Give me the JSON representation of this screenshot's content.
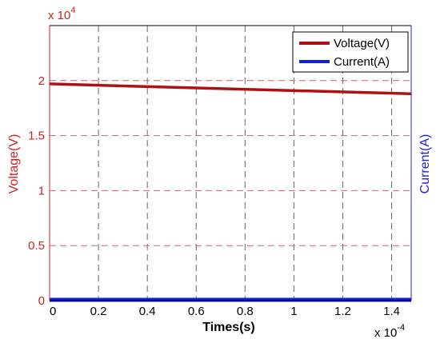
{
  "chart_data": {
    "type": "line",
    "x_label": "Times(s)",
    "x_exponent_label": "x 10",
    "x_exponent_power": "-4",
    "x_ticks": [
      "0",
      "0.2",
      "0.4",
      "0.6",
      "0.8",
      "1",
      "1.2",
      "1.4"
    ],
    "x_tick_values": [
      0,
      0.2,
      0.4,
      0.6,
      0.8,
      1.0,
      1.2,
      1.4
    ],
    "xlim": [
      0,
      1.48
    ],
    "y_left_label": "Voltage(V)",
    "y_left_exponent_label": "x 10",
    "y_left_exponent_power": "4",
    "y_left_ticks": [
      "0",
      "0.5",
      "1",
      "1.5",
      "2"
    ],
    "y_left_tick_values": [
      0,
      0.5,
      1.0,
      1.5,
      2.0
    ],
    "ylim_left": [
      0,
      2.5
    ],
    "y_right_label": "Current(A)",
    "grid": true,
    "legend_position": "top-right",
    "series": [
      {
        "name": "Voltage(V)",
        "color": "#b01010",
        "axis": "left",
        "x": [
          0,
          1.48
        ],
        "y": [
          1.97,
          1.88
        ]
      },
      {
        "name": "Current(A)",
        "color": "#0a1fe0",
        "axis": "right",
        "x": [
          0,
          1.48
        ],
        "y": [
          0,
          0
        ]
      }
    ],
    "colors": {
      "left_axis": "#cc2222",
      "right_axis": "#2222cc",
      "grid_major": "#666666",
      "grid_minor": "#cc6666"
    }
  }
}
